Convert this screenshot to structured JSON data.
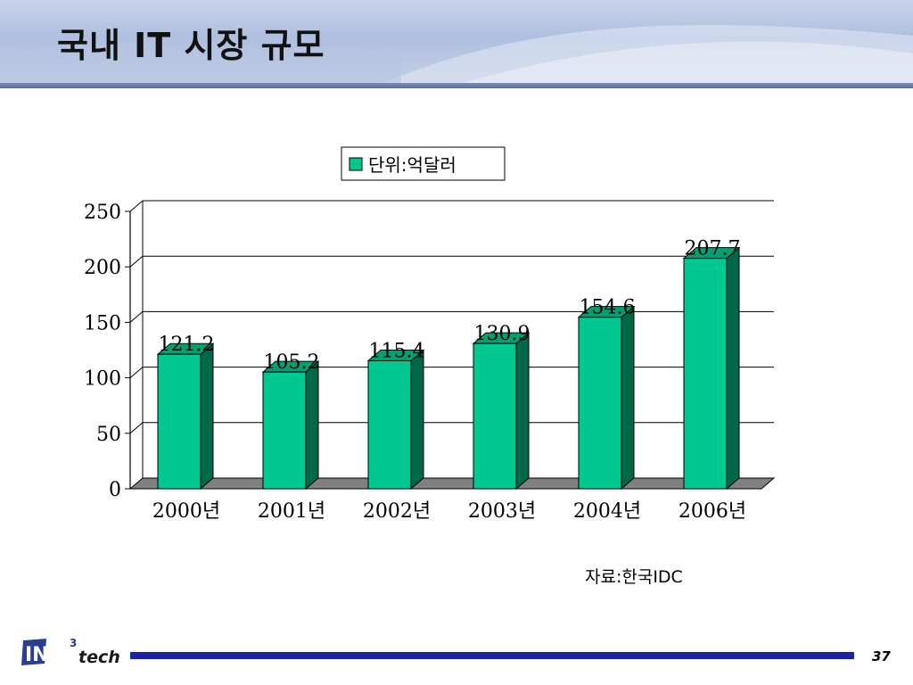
{
  "slide": {
    "title": "국내 IT 시장 규모",
    "source": "자료:한국IDC",
    "page_number": "37",
    "logo_text": "IN3tech"
  },
  "colors": {
    "bar_front": "#00c890",
    "bar_side": "#006848",
    "bar_top": "#00a070",
    "floor": "#808080",
    "header_rule": "#5a6c99",
    "footer_rule": "#1a22a8"
  },
  "chart_data": {
    "type": "bar",
    "title": "",
    "categories": [
      "2000년",
      "2001년",
      "2002년",
      "2003년",
      "2004년",
      "2006년"
    ],
    "series": [
      {
        "name": "단위:억달러",
        "values": [
          121.2,
          105.2,
          115.4,
          130.9,
          154.6,
          207.7
        ]
      }
    ],
    "data_labels": [
      "121.2",
      "105.2",
      "115.4",
      "130.9",
      "154.6",
      "207.7"
    ],
    "yticks": [
      "0",
      "50",
      "100",
      "150",
      "200",
      "250"
    ],
    "ylim": [
      0,
      250
    ],
    "xlabel": "",
    "ylabel": "",
    "grid": true,
    "legend_position": "top"
  }
}
